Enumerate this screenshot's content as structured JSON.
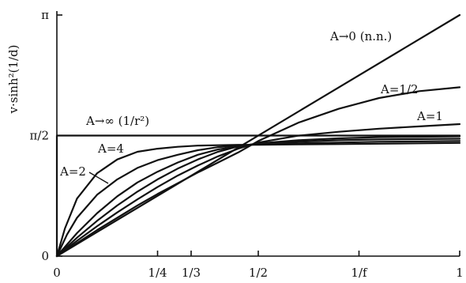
{
  "chart_data": {
    "type": "line",
    "title": "",
    "xlabel": "",
    "ylabel": "v·sinh²(1/d)",
    "xlim": [
      0,
      1
    ],
    "ylim": [
      0,
      3.14159
    ],
    "grid": false,
    "legend": "none",
    "x_ticks": [
      {
        "value": 0,
        "label": "0"
      },
      {
        "value": 0.25,
        "label": "1/4"
      },
      {
        "value": 0.3333,
        "label": "1/3"
      },
      {
        "value": 0.5,
        "label": "1/2"
      },
      {
        "value": 0.75,
        "label": "1/f"
      },
      {
        "value": 1,
        "label": "1"
      }
    ],
    "y_ticks": [
      {
        "value": 0,
        "label": "0"
      },
      {
        "value": 1.5708,
        "label": "π/2"
      },
      {
        "value": 3.14159,
        "label": "π"
      }
    ],
    "series": [
      {
        "name": "A→∞ (1/r²)",
        "x": [
          0,
          0,
          1
        ],
        "y": [
          0,
          1.571,
          1.571
        ]
      },
      {
        "name": "A=4",
        "x": [
          0,
          0.02,
          0.05,
          0.1,
          0.15,
          0.2,
          0.25,
          0.3,
          0.35,
          0.4,
          0.45,
          0.5,
          0.6,
          0.7,
          0.8,
          0.9,
          1
        ],
        "y": [
          0,
          0.36,
          0.75,
          1.08,
          1.26,
          1.36,
          1.4,
          1.425,
          1.44,
          1.445,
          1.45,
          1.45,
          1.455,
          1.46,
          1.465,
          1.47,
          1.475
        ]
      },
      {
        "name": "A=2",
        "x": [
          0,
          0.025,
          0.05,
          0.1,
          0.15,
          0.2,
          0.25,
          0.3,
          0.35,
          0.4,
          0.45,
          0.5,
          0.6,
          0.7,
          0.8,
          0.9,
          1
        ],
        "y": [
          0,
          0.28,
          0.5,
          0.8,
          1.0,
          1.15,
          1.25,
          1.32,
          1.38,
          1.42,
          1.44,
          1.46,
          1.47,
          1.48,
          1.49,
          1.495,
          1.5
        ]
      },
      {
        "name": "",
        "x": [
          0,
          0.05,
          0.1,
          0.15,
          0.2,
          0.25,
          0.3,
          0.35,
          0.4,
          0.45,
          0.5,
          0.6,
          0.7,
          0.8,
          0.9,
          1
        ],
        "y": [
          0,
          0.3,
          0.56,
          0.78,
          0.96,
          1.1,
          1.22,
          1.32,
          1.39,
          1.43,
          1.46,
          1.49,
          1.51,
          1.52,
          1.525,
          1.53
        ]
      },
      {
        "name": "",
        "x": [
          0,
          0.05,
          0.1,
          0.15,
          0.2,
          0.25,
          0.3,
          0.35,
          0.4,
          0.45,
          0.5,
          0.6,
          0.7,
          0.8,
          0.9,
          1
        ],
        "y": [
          0,
          0.24,
          0.46,
          0.66,
          0.84,
          1.0,
          1.14,
          1.26,
          1.36,
          1.43,
          1.47,
          1.51,
          1.535,
          1.55,
          1.555,
          1.56
        ]
      },
      {
        "name": "A=1",
        "x": [
          0,
          0.05,
          0.1,
          0.15,
          0.2,
          0.25,
          0.3,
          0.35,
          0.4,
          0.45,
          0.5,
          0.6,
          0.7,
          0.8,
          0.9,
          1
        ],
        "y": [
          0,
          0.2,
          0.39,
          0.57,
          0.74,
          0.9,
          1.05,
          1.18,
          1.3,
          1.4,
          1.48,
          1.57,
          1.62,
          1.66,
          1.69,
          1.72
        ]
      },
      {
        "name": "A=1/2",
        "x": [
          0,
          0.05,
          0.1,
          0.15,
          0.2,
          0.25,
          0.3,
          0.35,
          0.4,
          0.45,
          0.5,
          0.55,
          0.6,
          0.7,
          0.8,
          0.9,
          1
        ],
        "y": [
          0,
          0.17,
          0.34,
          0.5,
          0.66,
          0.81,
          0.95,
          1.09,
          1.22,
          1.35,
          1.5,
          1.62,
          1.74,
          1.92,
          2.06,
          2.15,
          2.2
        ]
      },
      {
        "name": "A→0 (n.n.)",
        "x": [
          0,
          1
        ],
        "y": [
          0,
          3.14159
        ]
      }
    ],
    "annotations": [
      {
        "text": "A→0 (n.n.)"
      },
      {
        "text": "A=1/2"
      },
      {
        "text": "A=1"
      },
      {
        "text": "A→∞ (1/r²)"
      },
      {
        "text": "A=4"
      },
      {
        "text": "A=2"
      }
    ]
  }
}
